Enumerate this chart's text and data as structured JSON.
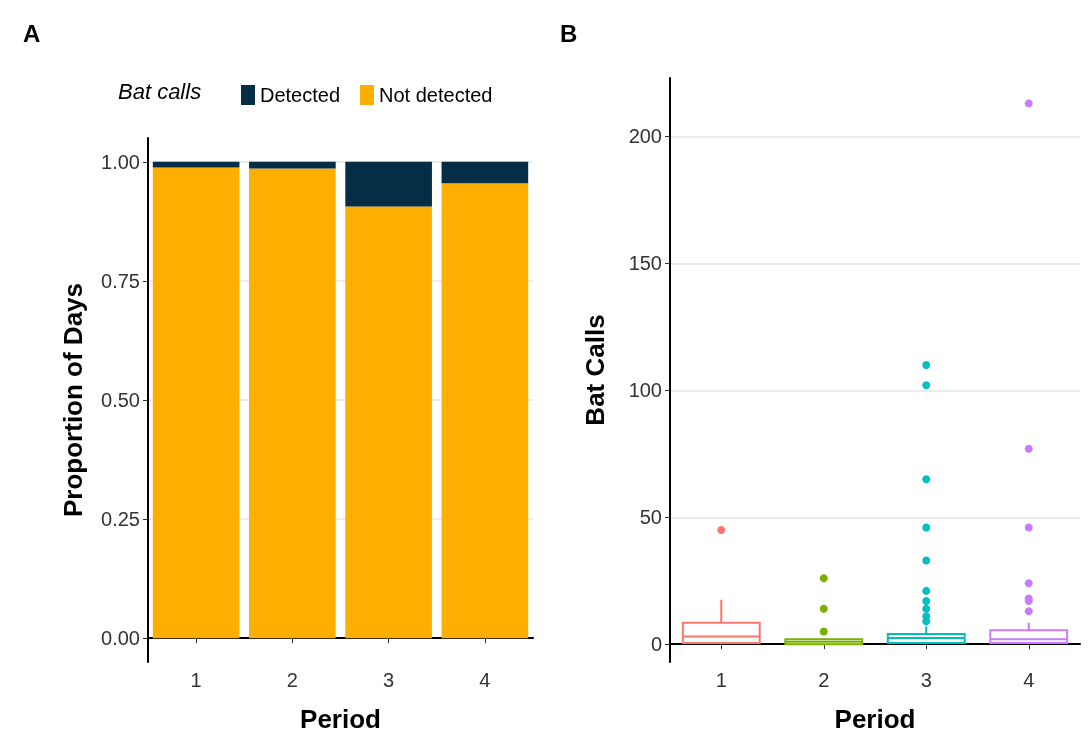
{
  "chart_data": [
    {
      "type": "bar",
      "title": "A",
      "xlabel": "Period",
      "ylabel": "Proportion of Days",
      "legend_title": "Bat calls",
      "categories": [
        "1",
        "2",
        "3",
        "4"
      ],
      "stacked": true,
      "series": [
        {
          "name": "Not detected",
          "color": "#fdae00",
          "values": [
            0.988,
            0.986,
            0.906,
            0.955
          ]
        },
        {
          "name": "Detected",
          "color": "#052d45",
          "values": [
            0.012,
            0.014,
            0.094,
            0.045
          ]
        }
      ],
      "ylim": [
        -0.05,
        1.05
      ],
      "yticks": [
        {
          "value": 0,
          "label": "0.00"
        },
        {
          "value": 0.25,
          "label": "0.25"
        },
        {
          "value": 0.5,
          "label": "0.50"
        },
        {
          "value": 0.75,
          "label": "0.75"
        },
        {
          "value": 1,
          "label": "1.00"
        }
      ],
      "grid": "y",
      "legend": "top"
    },
    {
      "type": "box",
      "title": "B",
      "xlabel": "Period",
      "ylabel": "Bat Calls",
      "categories": [
        "1",
        "2",
        "3",
        "4"
      ],
      "colors": [
        "#f8766d",
        "#7cae00",
        "#00bfc4",
        "#c77cff"
      ],
      "boxes": [
        {
          "low": 0,
          "q1": 0.5,
          "median": 3,
          "q3": 8.5,
          "high": 17.5,
          "outliers": [
            45
          ]
        },
        {
          "low": 0,
          "q1": 0,
          "median": 1,
          "q3": 2,
          "high": 2,
          "outliers": [
            5,
            14,
            26
          ]
        },
        {
          "low": 0,
          "q1": 0.5,
          "median": 2.5,
          "q3": 4,
          "high": 7,
          "outliers": [
            9,
            11,
            14,
            17,
            21,
            33,
            46,
            65,
            102,
            110
          ]
        },
        {
          "low": 0,
          "q1": 0.5,
          "median": 2,
          "q3": 5.5,
          "high": 8.5,
          "outliers": [
            13,
            17,
            18,
            24,
            46,
            77,
            213
          ]
        }
      ],
      "ylim": [
        -7,
        223
      ],
      "yticks": [
        0,
        50,
        100,
        150,
        200
      ],
      "grid": "y"
    }
  ]
}
